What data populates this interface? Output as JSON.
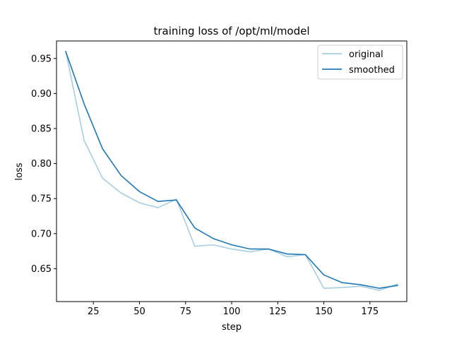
{
  "chart_data": {
    "type": "line",
    "title": "training loss of /opt/ml/model",
    "xlabel": "step",
    "ylabel": "loss",
    "xlim": [
      5,
      195
    ],
    "ylim": [
      0.603,
      0.975
    ],
    "xticks": [
      25,
      50,
      75,
      100,
      125,
      150,
      175
    ],
    "yticks": [
      0.65,
      0.7,
      0.75,
      0.8,
      0.85,
      0.9,
      0.95
    ],
    "grid": false,
    "legend_position": "top-right",
    "x": [
      10,
      20,
      30,
      40,
      50,
      60,
      70,
      80,
      90,
      100,
      110,
      120,
      130,
      140,
      150,
      160,
      170,
      180,
      190
    ],
    "series": [
      {
        "name": "original",
        "color": "#a6cee3",
        "values": [
          0.96,
          0.833,
          0.779,
          0.758,
          0.744,
          0.737,
          0.749,
          0.682,
          0.684,
          0.678,
          0.674,
          0.678,
          0.667,
          0.67,
          0.622,
          0.623,
          0.625,
          0.619,
          0.628
        ]
      },
      {
        "name": "smoothed",
        "color": "#1f78b4",
        "values": [
          0.96,
          0.885,
          0.821,
          0.783,
          0.76,
          0.746,
          0.748,
          0.708,
          0.693,
          0.684,
          0.678,
          0.678,
          0.671,
          0.67,
          0.641,
          0.63,
          0.627,
          0.622,
          0.626
        ]
      }
    ]
  }
}
